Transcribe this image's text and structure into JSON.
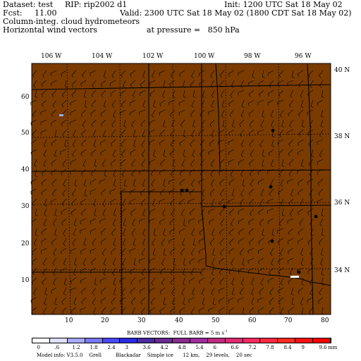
{
  "header": {
    "dataset": "Dataset: test",
    "rip": "RIP: rip2002 d1",
    "init": "Init: 1200 UTC Sat 18 May 02",
    "fcst": "Fcst:     11.00",
    "valid": "Valid: 2300 UTC Sat 18 May 02 (1800 CDT Sat 18 May 02)",
    "field1": "Column-integ. cloud hydrometeors",
    "field2": "Horizontal wind vectors",
    "pressure": "at pressure =   850 hPa"
  },
  "map": {
    "background_color": "#7a3b00",
    "longitude_labels": [
      "106 W",
      "104 W",
      "102 W",
      "100 W",
      "98 W",
      "96 W"
    ],
    "latitude_labels": [
      "40 N",
      "38 N",
      "36 N",
      "34 N"
    ],
    "grid_x_ticks": [
      "10",
      "20",
      "30",
      "40",
      "50",
      "60",
      "70",
      "80"
    ],
    "grid_y_ticks": [
      "60",
      "50",
      "40",
      "30",
      "20",
      "10"
    ]
  },
  "legend": {
    "barb_label": "BARB VECTORS:  FULL BARB = 5 m s",
    "barb_exp": "-1",
    "scale_values": [
      "0",
      ".6",
      "1.2",
      "1.8",
      "2.4",
      "3",
      "3.6",
      "4.2",
      "4.8",
      "5.4",
      "6",
      "6.6",
      "7.2",
      "7.8",
      "8.4",
      "9",
      "9.6"
    ],
    "unit": "mm",
    "colors": [
      "#ffffff",
      "#e0e0ff",
      "#a8a8ff",
      "#7878ff",
      "#4848ff",
      "#2a2ae0",
      "#4a2aa0",
      "#6a2a90",
      "#8a2a90",
      "#a02aa0",
      "#c02a80",
      "#e02a70",
      "#ff2a60",
      "#ff2a40",
      "#ff2a20",
      "#ff1010",
      "#ff0000"
    ]
  },
  "footer": {
    "model_info": "Model info: V3.5.0    Grell         Blackadar    Simple ice      12 km,    29 levels,    20 sec"
  }
}
